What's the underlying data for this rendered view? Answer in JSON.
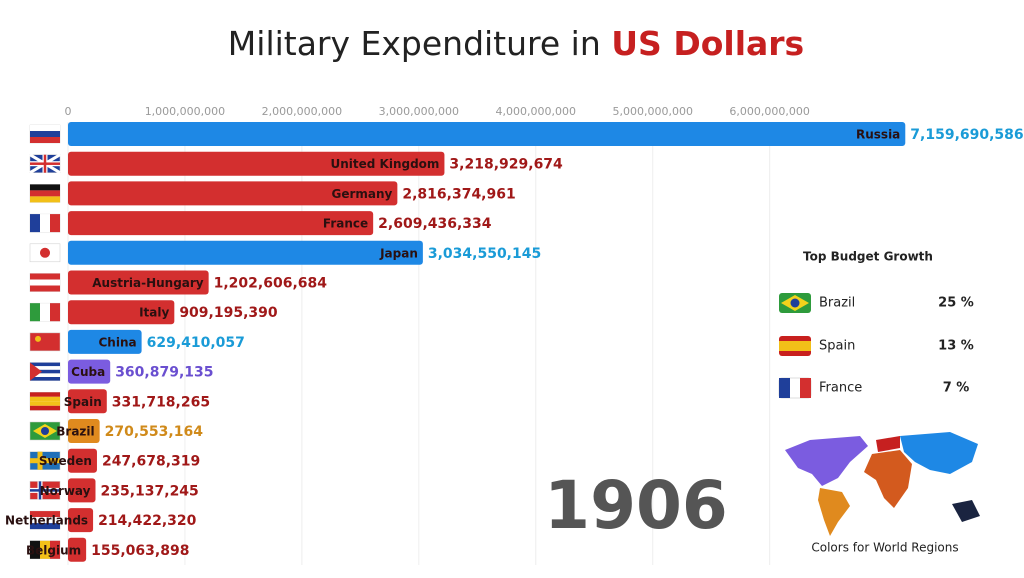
{
  "chart_data": {
    "type": "bar",
    "orientation": "horizontal",
    "title": "Military Expenditure in",
    "title_highlight": "US Dollars",
    "categories": [
      "Russia",
      "United Kingdom",
      "Germany",
      "France",
      "Japan",
      "Austria-Hungary",
      "Italy",
      "China",
      "Cuba",
      "Spain",
      "Brazil",
      "Sweden",
      "Norway",
      "Netherlands",
      "Belgium"
    ],
    "values": [
      7159690586,
      3218929674,
      2816374961,
      2609436334,
      3034550145,
      1202606684,
      909195390,
      629410057,
      360879135,
      331718265,
      270553164,
      247678319,
      235137245,
      214422320,
      155063898
    ],
    "value_labels": [
      "7,159,690,586",
      "3,218,929,674",
      "2,816,374,961",
      "2,609,436,334",
      "3,034,550,145",
      "1,202,606,684",
      "909,195,390",
      "629,410,057",
      "360,879,135",
      "331,718,265",
      "270,553,164",
      "247,678,319",
      "235,137,245",
      "214,422,320",
      "155,063,898"
    ],
    "colors": [
      "#1e88e5",
      "#d32f2f",
      "#d32f2f",
      "#d32f2f",
      "#1e88e5",
      "#d32f2f",
      "#d32f2f",
      "#1e88e5",
      "#7b5ce0",
      "#d32f2f",
      "#e08a1e",
      "#d32f2f",
      "#d32f2f",
      "#d32f2f",
      "#d32f2f"
    ],
    "label_colors": [
      "#1a9bd7",
      "#a01818",
      "#a01818",
      "#a01818",
      "#1a9bd7",
      "#a01818",
      "#a01818",
      "#1a9bd7",
      "#6a4fd0",
      "#a01818",
      "#d08a1a",
      "#a01818",
      "#a01818",
      "#a01818",
      "#a01818"
    ],
    "xlim": [
      0,
      7200000000
    ],
    "xticks": [
      {
        "value": 0,
        "label": "0"
      },
      {
        "value": 1000000000,
        "label": "1,000,000,000"
      },
      {
        "value": 2000000000,
        "label": "2,000,000,000"
      },
      {
        "value": 3000000000,
        "label": "3,000,000,000"
      },
      {
        "value": 4000000000,
        "label": "4,000,000,000"
      },
      {
        "value": 5000000000,
        "label": "5,000,000,000"
      },
      {
        "value": 6000000000,
        "label": "6,000,000,000"
      }
    ],
    "grid": true,
    "year": "1906"
  },
  "panel": {
    "title": "Top Budget Growth",
    "items": [
      {
        "country": "Brazil",
        "growth": "25 %"
      },
      {
        "country": "Spain",
        "growth": "13 %"
      },
      {
        "country": "France",
        "growth": "7 %"
      }
    ],
    "map_caption": "Colors for World Regions"
  }
}
